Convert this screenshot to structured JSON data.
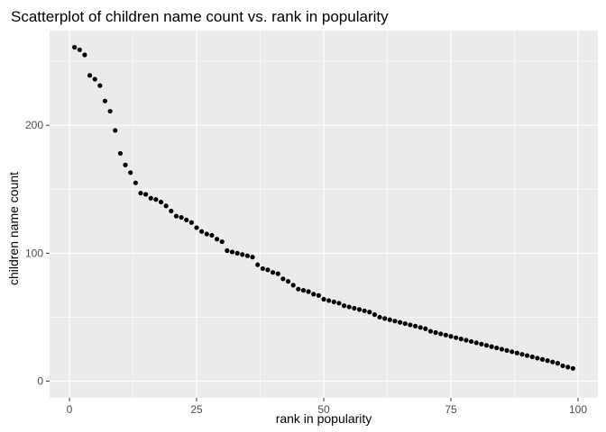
{
  "chart_data": {
    "type": "scatter",
    "title": "Scatterplot of children name count vs. rank in popularity",
    "xlabel": "rank in popularity",
    "ylabel": "children name count",
    "xlim": [
      -3.9,
      103.9
    ],
    "ylim": [
      -13,
      274
    ],
    "x_ticks": [
      0,
      25,
      50,
      75,
      100
    ],
    "y_ticks": [
      0,
      100,
      200
    ],
    "x_tick_labels": [
      "0",
      "25",
      "50",
      "75",
      "100"
    ],
    "y_tick_labels": [
      "0",
      "100",
      "200"
    ],
    "grid": true,
    "background": "#ebebeb",
    "grid_color": "#ffffff",
    "point_color": "#000000",
    "x": [
      1,
      2,
      3,
      4,
      5,
      6,
      7,
      8,
      9,
      10,
      11,
      12,
      13,
      14,
      15,
      16,
      17,
      18,
      19,
      20,
      21,
      22,
      23,
      24,
      25,
      26,
      27,
      28,
      29,
      30,
      31,
      32,
      33,
      34,
      35,
      36,
      37,
      38,
      39,
      40,
      41,
      42,
      43,
      44,
      45,
      46,
      47,
      48,
      49,
      50,
      51,
      52,
      53,
      54,
      55,
      56,
      57,
      58,
      59,
      60,
      61,
      62,
      63,
      64,
      65,
      66,
      67,
      68,
      69,
      70,
      71,
      72,
      73,
      74,
      75,
      76,
      77,
      78,
      79,
      80,
      81,
      82,
      83,
      84,
      85,
      86,
      87,
      88,
      89,
      90,
      91,
      92,
      93,
      94,
      95,
      96,
      97,
      98,
      99
    ],
    "y": [
      261,
      259,
      255,
      239,
      236,
      231,
      219,
      211,
      196,
      178,
      169,
      163,
      155,
      147,
      146,
      143,
      142,
      140,
      137,
      133,
      129,
      128,
      126,
      124,
      120,
      117,
      115,
      114,
      111,
      109,
      102,
      101,
      100,
      99,
      98,
      97,
      91,
      88,
      87,
      85,
      84,
      80,
      78,
      75,
      72,
      71,
      70,
      68,
      67,
      64,
      63,
      62,
      61,
      59,
      58,
      57,
      56,
      55,
      54,
      52,
      50,
      49,
      48,
      47,
      46,
      45,
      44,
      43,
      42,
      41,
      39,
      38,
      37,
      36,
      35,
      34,
      33,
      32,
      31,
      30,
      29,
      28,
      27,
      26,
      25,
      24,
      23,
      22,
      21,
      20,
      19,
      18,
      17,
      16,
      15,
      14,
      12,
      11,
      10
    ]
  }
}
